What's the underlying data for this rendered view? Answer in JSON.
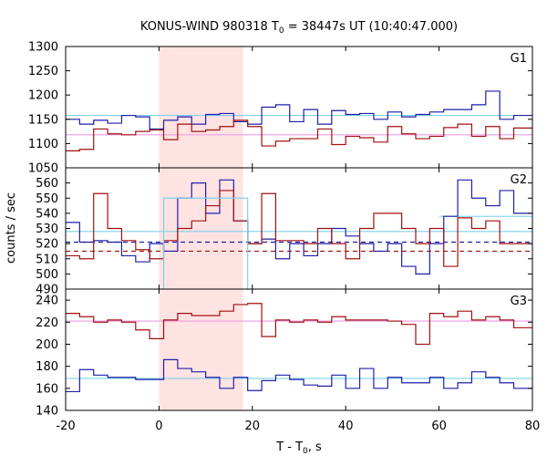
{
  "chart_data": {
    "type": "line",
    "title": "KONUS-WIND 980318 T0 = 38447s UT (10:40:47.000)",
    "title_parts": [
      "KONUS-WIND 980318 T",
      "0",
      " = 38447s UT (10:40:47.000)"
    ],
    "ylabel": "counts / sec",
    "xlabel_parts": [
      "T - T",
      "0",
      ", s"
    ],
    "xlim": [
      -20,
      80
    ],
    "x_ticks": [
      -20,
      0,
      20,
      40,
      60,
      80
    ],
    "x_tick_labels": [
      "-20",
      "0",
      "20",
      "40",
      "60",
      "80"
    ],
    "highlight_interval": [
      0,
      18
    ],
    "bin_edges": [
      -20,
      -17,
      -14,
      -11,
      -8,
      -5,
      -2,
      1,
      4,
      7,
      10,
      13,
      16,
      19,
      22,
      25,
      28,
      31,
      34,
      37,
      40,
      43,
      46,
      49,
      52,
      55,
      58,
      61,
      64,
      67,
      70,
      73,
      76,
      79,
      80
    ],
    "colors": {
      "blue": "#1f1fa8",
      "red": "#a01010",
      "cyan": "#7ed0e6",
      "pink": "#ee9be6",
      "shade": "#ffe3e3"
    },
    "panels": [
      {
        "label": "G1",
        "ylim": [
          1050,
          1300
        ],
        "y_ticks": [
          1050,
          1100,
          1150,
          1200,
          1250,
          1300
        ],
        "y_tick_labels": [
          "1050",
          "1100",
          "1150",
          "1200",
          "1250",
          "1300"
        ],
        "series": [
          {
            "color": "blue",
            "style": "step",
            "values": [
              1150,
              1140,
              1148,
              1142,
              1158,
              1155,
              1130,
              1148,
              1155,
              1140,
              1160,
              1162,
              1145,
              1140,
              1175,
              1180,
              1145,
              1170,
              1140,
              1168,
              1160,
              1162,
              1150,
              1165,
              1155,
              1160,
              1165,
              1170,
              1170,
              1180,
              1208,
              1150,
              1158,
              1158
            ]
          },
          {
            "color": "red",
            "style": "step",
            "values": [
              1085,
              1088,
              1130,
              1120,
              1118,
              1125,
              1128,
              1108,
              1140,
              1125,
              1128,
              1135,
              1148,
              1135,
              1095,
              1105,
              1110,
              1110,
              1130,
              1098,
              1115,
              1112,
              1103,
              1135,
              1120,
              1110,
              1115,
              1133,
              1140,
              1115,
              1135,
              1110,
              1132,
              1132
            ]
          }
        ],
        "reference_lines": [
          {
            "color": "cyan",
            "style": "solid",
            "value": 1158
          },
          {
            "color": "pink",
            "style": "solid",
            "value": 1118
          }
        ]
      },
      {
        "label": "G2",
        "ylim": [
          490,
          570
        ],
        "y_ticks": [
          490,
          500,
          510,
          520,
          530,
          540,
          550,
          560
        ],
        "y_tick_labels": [
          "490",
          "500",
          "510",
          "520",
          "530",
          "540",
          "550",
          "560"
        ],
        "series": [
          {
            "color": "blue",
            "style": "step",
            "values": [
              534,
              521,
              522,
              521,
              512,
              508,
              520,
              515,
              550,
              560,
              540,
              562,
              535,
              520,
              523,
              510,
              520,
              512,
              520,
              530,
              525,
              520,
              515,
              520,
              505,
              500,
              520,
              538,
              562,
              550,
              545,
              555,
              540,
              540
            ]
          },
          {
            "color": "red",
            "style": "step",
            "values": [
              512,
              510,
              553,
              530,
              522,
              516,
              510,
              522,
              530,
              535,
              545,
              555,
              535,
              520,
              553,
              522,
              522,
              520,
              530,
              520,
              510,
              530,
              540,
              540,
              530,
              520,
              530,
              505,
              537,
              530,
              535,
              520,
              520,
              520
            ]
          },
          {
            "color": "cyan",
            "style": "step",
            "values": [
              null,
              null,
              null,
              null,
              null,
              null,
              null,
              550,
              550,
              550,
              550,
              550,
              550,
              null,
              null,
              null,
              null,
              null,
              null,
              null,
              null,
              null,
              null,
              null,
              null,
              null,
              null,
              null,
              null,
              null,
              null,
              null,
              null,
              null
            ]
          }
        ],
        "reference_lines": [
          {
            "color": "cyan",
            "style": "solid",
            "value": 528
          },
          {
            "color": "cyan",
            "style": "solid",
            "value": 538,
            "x_from": 60
          },
          {
            "color": "blue",
            "style": "dashed",
            "value": 521
          },
          {
            "color": "red",
            "style": "dashed",
            "value": 515
          }
        ]
      },
      {
        "label": "G3",
        "ylim": [
          140,
          250
        ],
        "y_ticks": [
          140,
          160,
          180,
          200,
          220,
          240
        ],
        "y_tick_labels": [
          "140",
          "160",
          "180",
          "200",
          "220",
          "240"
        ],
        "series": [
          {
            "color": "red",
            "style": "step",
            "values": [
              228,
              225,
              220,
              222,
              220,
              213,
              205,
              222,
              228,
              226,
              226,
              230,
              236,
              237,
              207,
              222,
              220,
              222,
              220,
              225,
              222,
              222,
              222,
              221,
              218,
              200,
              228,
              225,
              230,
              222,
              225,
              222,
              215,
              215
            ]
          },
          {
            "color": "blue",
            "style": "step",
            "values": [
              157,
              177,
              172,
              170,
              170,
              168,
              168,
              186,
              178,
              175,
              170,
              160,
              170,
              158,
              167,
              172,
              168,
              163,
              162,
              172,
              160,
              178,
              160,
              170,
              165,
              165,
              170,
              160,
              165,
              175,
              170,
              165,
              160,
              160
            ]
          }
        ],
        "reference_lines": [
          {
            "color": "pink",
            "style": "solid",
            "value": 221
          },
          {
            "color": "cyan",
            "style": "solid",
            "value": 169
          }
        ]
      }
    ]
  }
}
